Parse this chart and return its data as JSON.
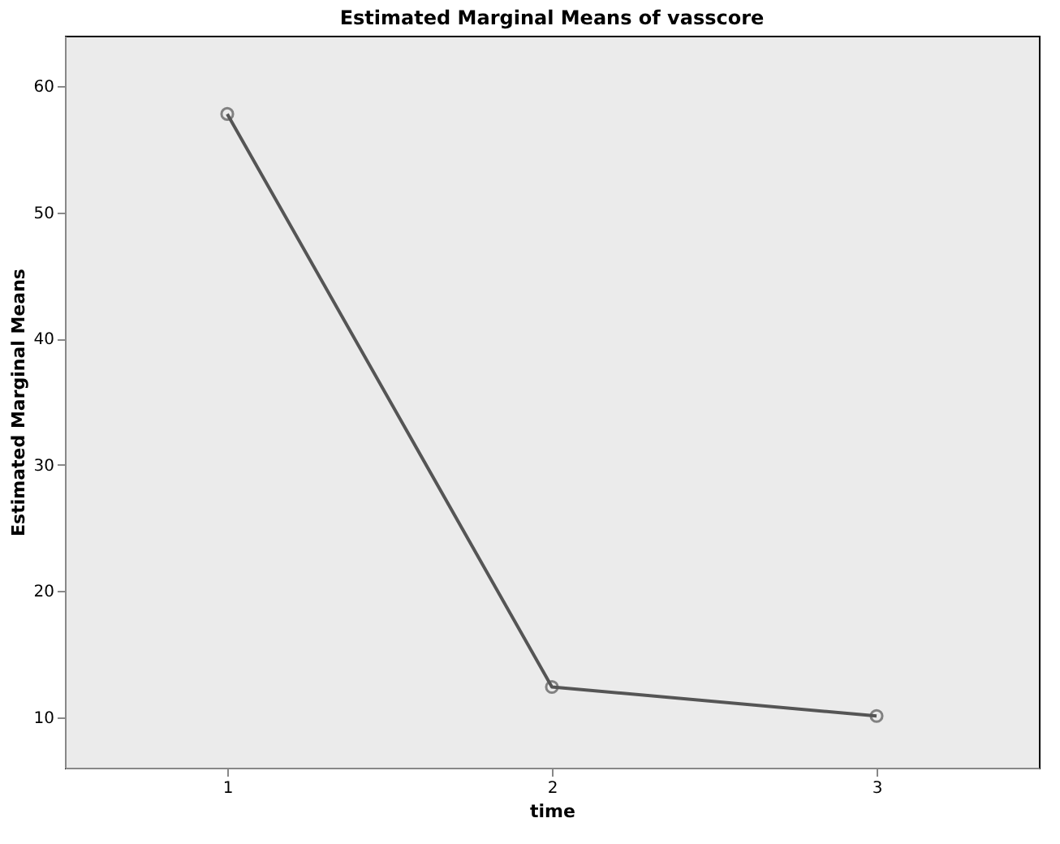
{
  "chart_data": {
    "type": "line",
    "title": "Estimated Marginal Means of vasscore",
    "xlabel": "time",
    "ylabel": "Estimated Marginal Means",
    "categories": [
      "1",
      "2",
      "3"
    ],
    "series": [
      {
        "color": "#555555",
        "values": [
          57.8,
          12.4,
          10.1
        ]
      }
    ],
    "ylim": [
      6,
      64
    ],
    "yticks": [
      10,
      20,
      30,
      40,
      50,
      60
    ],
    "grid": false,
    "legend": false,
    "marker": "circle",
    "line_style": "solid"
  }
}
